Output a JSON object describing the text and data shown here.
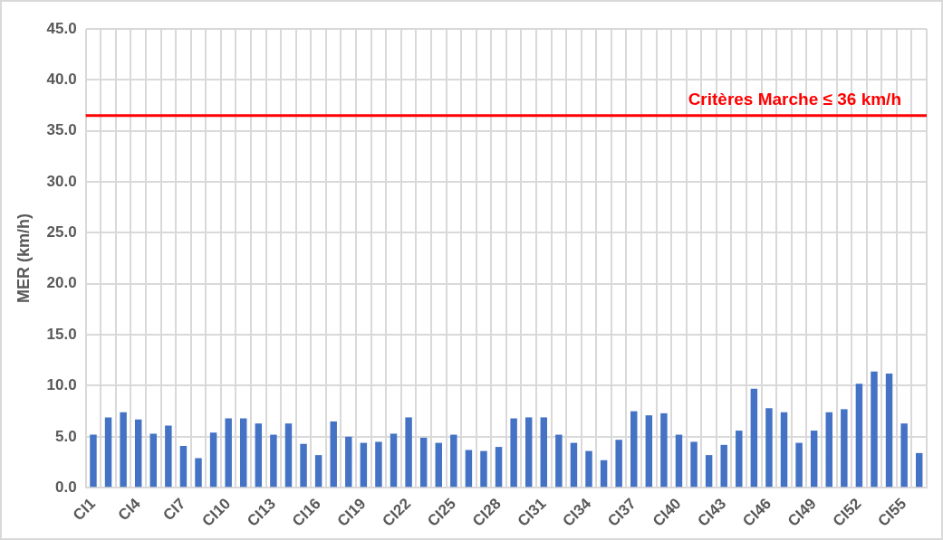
{
  "chart_data": {
    "type": "bar",
    "ylabel": "MER (km/h)",
    "categories": [
      "CI1",
      null,
      null,
      "CI4",
      null,
      null,
      "CI7",
      null,
      null,
      "CI10",
      null,
      null,
      "CI13",
      null,
      null,
      "CI16",
      null,
      null,
      "CI19",
      null,
      null,
      "CI22",
      null,
      null,
      "CI25",
      null,
      null,
      "CI28",
      null,
      null,
      "CI31",
      null,
      null,
      "CI34",
      null,
      null,
      "CI37",
      null,
      null,
      "CI40",
      null,
      null,
      "CI43",
      null,
      null,
      "CI46",
      null,
      null,
      "CI49",
      null,
      null,
      "CI52",
      null,
      null,
      "CI55",
      null
    ],
    "values": [
      5.2,
      6.9,
      7.4,
      6.7,
      5.3,
      6.1,
      4.1,
      2.9,
      5.4,
      6.8,
      6.8,
      6.3,
      5.2,
      6.3,
      4.3,
      3.2,
      6.5,
      5.0,
      4.4,
      4.5,
      5.3,
      6.9,
      4.9,
      4.4,
      5.2,
      3.7,
      3.6,
      4.0,
      6.8,
      6.9,
      6.9,
      5.2,
      4.4,
      3.6,
      2.7,
      4.7,
      7.5,
      7.1,
      7.3,
      5.2,
      4.5,
      3.2,
      4.2,
      5.6,
      9.7,
      7.8,
      7.4,
      4.4,
      5.6,
      7.4,
      7.7,
      10.2,
      11.4,
      11.2,
      6.3,
      3.4
    ],
    "color": "#4472c4",
    "ylim": [
      0,
      45
    ],
    "yticks": [
      {
        "value": 0,
        "label": "0.0"
      },
      {
        "value": 5,
        "label": "5.0"
      },
      {
        "value": 10,
        "label": "10.0"
      },
      {
        "value": 15,
        "label": "15.0"
      },
      {
        "value": 20,
        "label": "20.0"
      },
      {
        "value": 25,
        "label": "25.0"
      },
      {
        "value": 30,
        "label": "30.0"
      },
      {
        "value": 35,
        "label": "35.0"
      },
      {
        "value": 40,
        "label": "40.0"
      },
      {
        "value": 45,
        "label": "45.0"
      }
    ],
    "grid": true,
    "ref_lines": [
      {
        "axis": "y",
        "value": 36.5,
        "label": "Critères Marche ≤ 36 km/h",
        "color": "#ff0000"
      }
    ]
  }
}
